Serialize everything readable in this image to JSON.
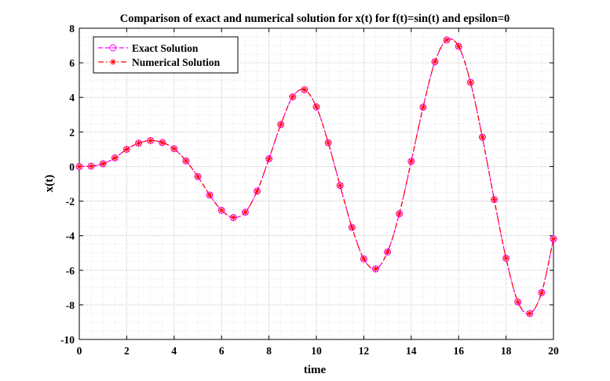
{
  "chart_data": {
    "type": "line",
    "title": "Comparison of exact and numerical solution for x(t) for f(t)=sin(t) and epsilon=0",
    "xlabel": "time",
    "ylabel": "x(t)",
    "xlim": [
      0,
      20
    ],
    "ylim": [
      -10,
      8
    ],
    "xticks": [
      "0",
      "2",
      "4",
      "6",
      "8",
      "10",
      "12",
      "14",
      "16",
      "18",
      "20"
    ],
    "yticks": [
      "-10",
      "-8",
      "-6",
      "-4",
      "-2",
      "0",
      "2",
      "4",
      "6",
      "8"
    ],
    "grid": true,
    "minor_grid": true,
    "legend_position": "top-left",
    "series": [
      {
        "name": "Exact Solution",
        "color": "#ff00ff",
        "linestyle": "dashed",
        "marker": "circle",
        "x": [
          0.0,
          0.5,
          1.0,
          1.5,
          2.0,
          2.5,
          3.0,
          3.5,
          4.0,
          4.5,
          5.0,
          5.5,
          6.0,
          6.5,
          7.0,
          7.5,
          8.0,
          8.5,
          9.0,
          9.5,
          10.0,
          10.5,
          11.0,
          11.5,
          12.0,
          12.5,
          13.0,
          13.5,
          14.0,
          14.5,
          15.0,
          15.5,
          16.0,
          16.5,
          17.0,
          17.5,
          18.0,
          18.5,
          19.0,
          19.5,
          20.0
        ],
        "y": [
          0.0,
          0.02,
          0.16,
          0.5,
          1.0,
          1.35,
          1.5,
          1.39,
          1.03,
          0.33,
          -0.58,
          -1.65,
          -2.53,
          -2.95,
          -2.64,
          -1.42,
          0.45,
          2.43,
          4.03,
          4.44,
          3.45,
          1.38,
          -1.1,
          -3.52,
          -5.34,
          -5.92,
          -4.94,
          -2.73,
          0.3,
          3.43,
          6.06,
          7.32,
          6.95,
          4.87,
          1.7,
          -1.91,
          -5.3,
          -7.83,
          -8.5,
          -7.29,
          -4.18
        ]
      },
      {
        "name": "Numerical Solution",
        "color": "#ff0000",
        "linestyle": "dashdot",
        "marker": "asterisk",
        "x": [
          0.0,
          0.5,
          1.0,
          1.5,
          2.0,
          2.5,
          3.0,
          3.5,
          4.0,
          4.5,
          5.0,
          5.5,
          6.0,
          6.5,
          7.0,
          7.5,
          8.0,
          8.5,
          9.0,
          9.5,
          10.0,
          10.5,
          11.0,
          11.5,
          12.0,
          12.5,
          13.0,
          13.5,
          14.0,
          14.5,
          15.0,
          15.5,
          16.0,
          16.5,
          17.0,
          17.5,
          18.0,
          18.5,
          19.0,
          19.5,
          20.0
        ],
        "y": [
          0.0,
          0.02,
          0.16,
          0.5,
          1.0,
          1.35,
          1.5,
          1.39,
          1.03,
          0.33,
          -0.58,
          -1.65,
          -2.53,
          -2.95,
          -2.64,
          -1.42,
          0.45,
          2.43,
          4.03,
          4.44,
          3.45,
          1.38,
          -1.1,
          -3.52,
          -5.34,
          -5.92,
          -4.94,
          -2.73,
          0.3,
          3.43,
          6.06,
          7.32,
          6.95,
          4.87,
          1.7,
          -1.91,
          -5.3,
          -7.83,
          -8.5,
          -7.29,
          -4.18
        ]
      }
    ]
  }
}
